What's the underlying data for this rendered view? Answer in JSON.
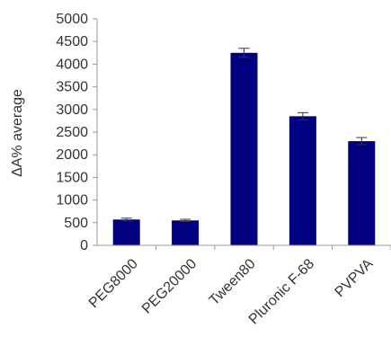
{
  "chart_data": {
    "type": "bar",
    "title": "",
    "xlabel": "",
    "ylabel": "ΔA% average",
    "categories": [
      "PEG8000",
      "PEG20000",
      "Tween80",
      "Pluronic F-68",
      "PVPVA"
    ],
    "values": [
      570,
      550,
      4250,
      2850,
      2300
    ],
    "errors": [
      30,
      25,
      100,
      80,
      80
    ],
    "ylim": [
      0,
      5000
    ],
    "yticks": [
      "0",
      "500",
      "1000",
      "1500",
      "2000",
      "2500",
      "3000",
      "3500",
      "4000",
      "4500",
      "5000"
    ],
    "ytick_values": [
      0,
      500,
      1000,
      1500,
      2000,
      2500,
      3000,
      3500,
      4000,
      4500,
      5000
    ],
    "grid": false,
    "bar_color": "#000080",
    "error_color": "#333333"
  }
}
